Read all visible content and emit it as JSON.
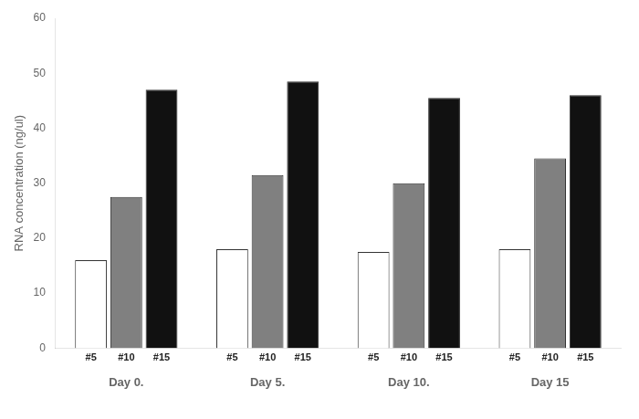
{
  "chart_data": {
    "type": "bar",
    "categories": [
      "Day 0.",
      "Day 5.",
      "Day 10.",
      "Day 15"
    ],
    "series": [
      {
        "name": "#5",
        "color": "#ffffff",
        "values": [
          16.0,
          18.0,
          17.5,
          18.0
        ]
      },
      {
        "name": "#10",
        "color": "#808080",
        "values": [
          27.5,
          31.5,
          30.0,
          34.5
        ]
      },
      {
        "name": "#15",
        "color": "#111111",
        "values": [
          47.0,
          48.5,
          45.5,
          46.0
        ]
      }
    ],
    "ylabel": "RNA concentration (ng/ul)",
    "ylim": [
      0,
      60
    ],
    "yticks": [
      0,
      10,
      20,
      30,
      40,
      50,
      60
    ],
    "grid": false
  }
}
